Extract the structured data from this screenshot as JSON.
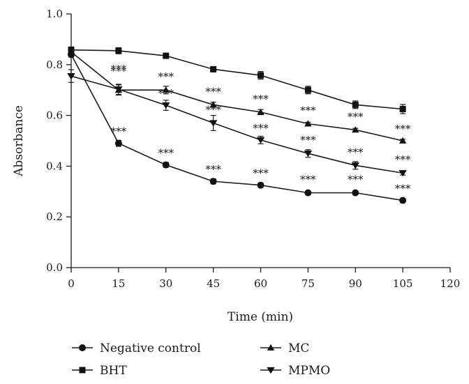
{
  "chart_data": {
    "type": "line",
    "xlabel": "Time (min)",
    "ylabel": "Absorbance",
    "xlim": [
      0,
      120
    ],
    "ylim": [
      0,
      1.0
    ],
    "x_ticks": [
      "0",
      "15",
      "30",
      "45",
      "60",
      "75",
      "90",
      "105",
      "120"
    ],
    "y_ticks": [
      "0.0",
      "0.2",
      "0.4",
      "0.6",
      "0.8",
      "1.0"
    ],
    "x": [
      0,
      15,
      30,
      45,
      60,
      75,
      90,
      105
    ],
    "grid": false,
    "legend_position": "bottom",
    "series": [
      {
        "name": "Negative control",
        "marker": "circle",
        "values": [
          0.84,
          0.49,
          0.405,
          0.34,
          0.325,
          0.295,
          0.295,
          0.265
        ],
        "errors": [
          0.01,
          0.012,
          0.01,
          0.01,
          0.008,
          0.006,
          0.006,
          0.006
        ],
        "significance": [
          "",
          "***",
          "***",
          "***",
          "***",
          "***",
          "***",
          "***"
        ]
      },
      {
        "name": "BHT",
        "marker": "square",
        "values": [
          0.858,
          0.855,
          0.835,
          0.782,
          0.758,
          0.7,
          0.642,
          0.625
        ],
        "errors": [
          0.012,
          0.012,
          0.01,
          0.01,
          0.015,
          0.015,
          0.015,
          0.018
        ],
        "significance": [
          "",
          "",
          "",
          "",
          "",
          "",
          "",
          ""
        ]
      },
      {
        "name": "MC",
        "marker": "triangle-up",
        "values": [
          0.85,
          0.7,
          0.7,
          0.642,
          0.613,
          0.567,
          0.543,
          0.5
        ],
        "errors": [
          0.01,
          0.02,
          0.015,
          0.01,
          0.01,
          0.006,
          0.006,
          0.006
        ],
        "significance": [
          "",
          "***",
          "***",
          "***",
          "***",
          "***",
          "***",
          "***"
        ]
      },
      {
        "name": "MPMO",
        "marker": "triangle-down",
        "values": [
          0.755,
          0.703,
          0.64,
          0.57,
          0.503,
          0.45,
          0.403,
          0.373
        ],
        "errors": [
          0.025,
          0.02,
          0.02,
          0.03,
          0.015,
          0.015,
          0.015,
          0.008
        ],
        "significance": [
          "",
          "***",
          "***",
          "***",
          "***",
          "***",
          "***",
          "***"
        ]
      }
    ]
  }
}
